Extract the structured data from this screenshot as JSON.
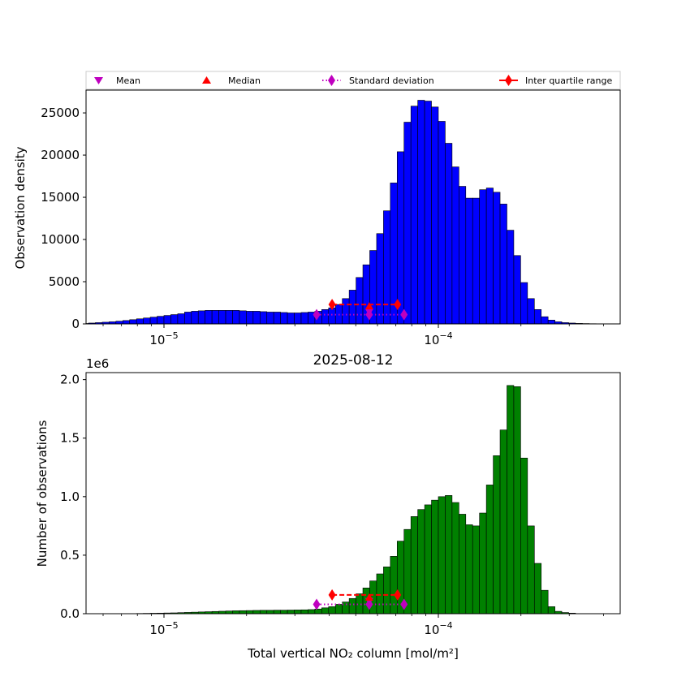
{
  "figure": {
    "middle_title": "2025-08-12",
    "legend": [
      {
        "label": "Mean",
        "marker": "triangle-down",
        "color": "#bf00bf"
      },
      {
        "label": "Median",
        "marker": "triangle-up",
        "color": "#ff0000"
      },
      {
        "label": "Standard deviation",
        "marker": "diamond-dotted-line",
        "color": "#bf00bf"
      },
      {
        "label": "Inter quartile range",
        "marker": "diamond-solid-line",
        "color": "#ff0000"
      }
    ]
  },
  "chart_data": [
    {
      "type": "bar",
      "title": "",
      "xlabel": "",
      "ylabel": "Observation density",
      "xscale": "log",
      "xlim": [
        5.2e-06,
        0.00046
      ],
      "ylim": [
        0,
        27700
      ],
      "yticks": [
        0,
        5000,
        10000,
        15000,
        20000,
        25000
      ],
      "ytick_labels": [
        "0",
        "5000",
        "10000",
        "15000",
        "20000",
        "25000"
      ],
      "xtick_labels": [
        {
          "base": "10",
          "exp": "−5",
          "value": 1e-05
        },
        {
          "base": "10",
          "exp": "−4",
          "value": 0.0001
        }
      ],
      "bar_color": "#0000ff",
      "bin_log_start": -5.3,
      "bin_log_width": 0.025,
      "values": [
        50,
        100,
        150,
        200,
        250,
        320,
        400,
        500,
        600,
        700,
        800,
        900,
        1000,
        1100,
        1200,
        1400,
        1500,
        1550,
        1600,
        1600,
        1600,
        1600,
        1600,
        1550,
        1500,
        1500,
        1450,
        1400,
        1400,
        1350,
        1300,
        1300,
        1350,
        1400,
        1500,
        1700,
        1900,
        2300,
        3000,
        4000,
        5500,
        7000,
        8700,
        10700,
        13400,
        16700,
        20400,
        23900,
        25800,
        26500,
        26400,
        25700,
        24000,
        21400,
        18600,
        16300,
        14900,
        14900,
        15900,
        16100,
        15600,
        14200,
        11100,
        8100,
        4900,
        3000,
        1700,
        850,
        450,
        250,
        150,
        100,
        60,
        40,
        25,
        15,
        10,
        5,
        5
      ],
      "mean": 5.6e-05,
      "median": 5.6e-05,
      "std_range": [
        3.6e-05,
        7.5e-05
      ],
      "iqr_range": [
        4.1e-05,
        7.1e-05
      ],
      "marker_y": {
        "mean": 1300,
        "median": 2100,
        "std": 1100,
        "iqr": 2300
      }
    },
    {
      "type": "bar",
      "title": "",
      "xlabel": "Total vertical NO₂ column [mol/m²]",
      "ylabel": "Number of observations",
      "xscale": "log",
      "offset_label": "1e6",
      "xlim": [
        5.2e-06,
        0.00046
      ],
      "ylim": [
        0,
        2.06
      ],
      "yticks": [
        0,
        0.5,
        1.0,
        1.5,
        2.0
      ],
      "ytick_labels": [
        "0.0",
        "0.5",
        "1.0",
        "1.5",
        "2.0"
      ],
      "xtick_labels": [
        {
          "base": "10",
          "exp": "−5",
          "value": 1e-05
        },
        {
          "base": "10",
          "exp": "−4",
          "value": 0.0001
        }
      ],
      "bar_color": "#008000",
      "bin_log_start": -5.3,
      "bin_log_width": 0.025,
      "values": [
        0.002,
        0.003,
        0.004,
        0.005,
        0.006,
        0.007,
        0.009,
        0.011,
        0.013,
        0.015,
        0.017,
        0.019,
        0.021,
        0.023,
        0.025,
        0.026,
        0.027,
        0.028,
        0.029,
        0.029,
        0.03,
        0.03,
        0.031,
        0.032,
        0.033,
        0.035,
        0.04,
        0.05,
        0.06,
        0.08,
        0.1,
        0.13,
        0.17,
        0.22,
        0.28,
        0.34,
        0.4,
        0.49,
        0.62,
        0.72,
        0.83,
        0.89,
        0.93,
        0.97,
        1.0,
        1.01,
        0.95,
        0.85,
        0.76,
        0.75,
        0.86,
        1.1,
        1.35,
        1.57,
        1.95,
        1.94,
        1.33,
        0.75,
        0.43,
        0.2,
        0.06,
        0.02,
        0.01,
        0.005
      ],
      "values_offset_start": 8,
      "mean": 5.6e-05,
      "median": 5.6e-05,
      "std_range": [
        3.6e-05,
        7.5e-05
      ],
      "iqr_range": [
        4.1e-05,
        7.1e-05
      ],
      "marker_y": {
        "mean": 0.1,
        "median": 0.14,
        "std": 0.08,
        "iqr": 0.16
      }
    }
  ]
}
